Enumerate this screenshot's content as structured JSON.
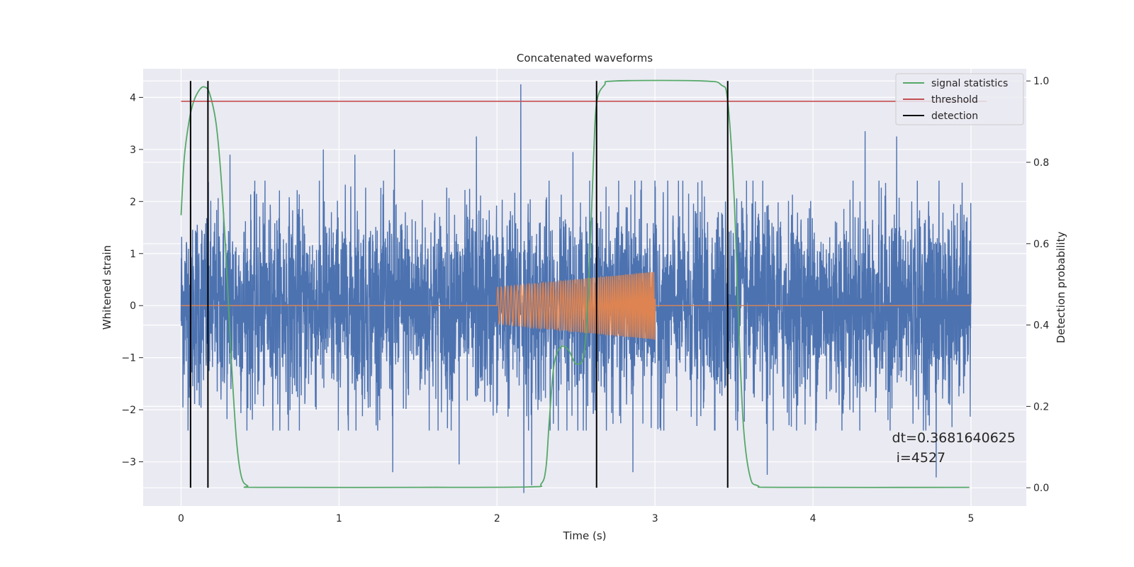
{
  "chart_data": {
    "type": "line",
    "title": "Concatenated waveforms",
    "xlabel": "Time (s)",
    "ylabel": "Whitened strain",
    "y2label": "Detection probability",
    "xlim": [
      -0.24,
      5.35
    ],
    "ylim": [
      -3.85,
      4.55
    ],
    "y2lim": [
      -0.045,
      1.03
    ],
    "xticks": [
      0,
      1,
      2,
      3,
      4,
      5
    ],
    "yticks": [
      -3,
      -2,
      -1,
      0,
      1,
      2,
      3,
      4
    ],
    "y2ticks": [
      0.0,
      0.2,
      0.4,
      0.6,
      0.8,
      1.0
    ],
    "xtick_labels": [
      "0",
      "1",
      "2",
      "3",
      "4",
      "5"
    ],
    "ytick_labels": [
      "−3",
      "−2",
      "−1",
      "0",
      "1",
      "2",
      "3",
      "4"
    ],
    "y2tick_labels": [
      "0.0",
      "0.2",
      "0.4",
      "0.6",
      "0.8",
      "1.0"
    ],
    "grid": true,
    "legend_position": "top-right",
    "background": "#eaeaf2",
    "series": [
      {
        "name": "",
        "axis": "left",
        "color": "#4c72b0",
        "description": "whitened noisy strain, about 1.1 around 0 with spikes",
        "x_range": [
          0,
          5
        ],
        "spikes": [
          {
            "x": 2.15,
            "y": 4.25
          },
          {
            "x": 1.87,
            "y": 3.25
          },
          {
            "x": 4.33,
            "y": 3.35
          },
          {
            "x": 4.53,
            "y": 3.25
          },
          {
            "x": 0.31,
            "y": 2.9
          },
          {
            "x": 0.9,
            "y": 3.0
          },
          {
            "x": 1.1,
            "y": 2.9
          },
          {
            "x": 1.35,
            "y": 3.0
          },
          {
            "x": 2.48,
            "y": 2.95
          },
          {
            "x": 2.22,
            "y": -3.45
          },
          {
            "x": 2.17,
            "y": -3.6
          },
          {
            "x": 1.76,
            "y": -3.05
          },
          {
            "x": 1.34,
            "y": -3.2
          },
          {
            "x": 2.86,
            "y": -3.2
          },
          {
            "x": 3.71,
            "y": -3.25
          },
          {
            "x": 4.78,
            "y": -3.3
          }
        ]
      },
      {
        "name": "",
        "axis": "left",
        "color": "#dd8452",
        "description": "injected chirp signal, zero outside 2 to 3 s",
        "chirp_start": 2.0,
        "chirp_end": 3.0,
        "amp_start": 0.35,
        "amp_end": 0.65,
        "f_start": 45,
        "f_end": 95
      },
      {
        "name": "signal statistics",
        "axis": "right",
        "color": "#55a868",
        "x": [
          0.0,
          0.02,
          0.05,
          0.08,
          0.12,
          0.15,
          0.18,
          0.22,
          0.25,
          0.28,
          0.3,
          0.32,
          0.35,
          0.38,
          0.42,
          0.5,
          1.5,
          2.2,
          2.28,
          2.31,
          2.33,
          2.36,
          2.4,
          2.45,
          2.5,
          2.55,
          2.58,
          2.61,
          2.63,
          2.68,
          2.75,
          3.3,
          3.42,
          3.46,
          3.5,
          3.53,
          3.56,
          3.6,
          3.65,
          3.8,
          4.99
        ],
        "y": [
          0.67,
          0.81,
          0.9,
          0.95,
          0.98,
          0.985,
          0.97,
          0.9,
          0.78,
          0.6,
          0.45,
          0.3,
          0.12,
          0.03,
          0.005,
          0.001,
          0.001,
          0.002,
          0.01,
          0.05,
          0.16,
          0.3,
          0.345,
          0.34,
          0.305,
          0.33,
          0.5,
          0.8,
          0.945,
          0.99,
          1.0,
          1.0,
          0.99,
          0.95,
          0.72,
          0.4,
          0.15,
          0.03,
          0.005,
          0.001,
          0.001
        ]
      },
      {
        "name": "threshold",
        "axis": "right",
        "color": "#c44e52",
        "x": [
          0,
          5.1
        ],
        "y": [
          0.95,
          0.95
        ]
      },
      {
        "name": "detection",
        "axis": "right",
        "color": "#000000",
        "type": "vlines",
        "x": [
          0.06,
          0.17,
          2.63,
          3.46
        ],
        "y_range": [
          0.0,
          1.0
        ]
      }
    ],
    "annotation": {
      "line1": "dt=0.3681640625",
      "line2": " i=4527",
      "x": 4.5,
      "y": -2.6
    }
  }
}
